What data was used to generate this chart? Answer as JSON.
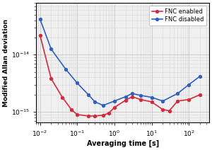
{
  "xlabel": "Averaging time [s]",
  "ylabel": "Modified Allan deviation",
  "xlim": [
    0.008,
    350
  ],
  "ylim": [
    6.5e-16,
    8e-14
  ],
  "fnc_enabled_x": [
    0.01,
    0.02,
    0.04,
    0.07,
    0.1,
    0.2,
    0.3,
    0.5,
    0.7,
    1.0,
    2.0,
    3.0,
    5.0,
    10.0,
    20.0,
    30.0,
    50.0,
    100.0,
    200.0
  ],
  "fnc_enabled_y": [
    2.2e-14,
    3.8e-15,
    1.8e-15,
    1.1e-15,
    9e-16,
    8.5e-16,
    8.5e-16,
    8.8e-16,
    9.5e-16,
    1.2e-15,
    1.6e-15,
    1.85e-15,
    1.65e-15,
    1.5e-15,
    1.1e-15,
    1.05e-15,
    1.55e-15,
    1.65e-15,
    2e-15
  ],
  "fnc_disabled_x": [
    0.01,
    0.02,
    0.05,
    0.1,
    0.2,
    0.3,
    0.5,
    1.0,
    2.0,
    3.0,
    5.0,
    10.0,
    20.0,
    50.0,
    100.0,
    200.0
  ],
  "fnc_disabled_y": [
    4.2e-14,
    1.25e-14,
    5.5e-15,
    3.2e-15,
    2e-15,
    1.5e-15,
    1.3e-15,
    1.55e-15,
    1.85e-15,
    2.1e-15,
    1.95e-15,
    1.8e-15,
    1.55e-15,
    2.1e-15,
    3e-15,
    4.2e-15
  ],
  "color_enabled": "#d42b3c",
  "color_disabled": "#3060c0",
  "legend_enabled": "FNC enabled",
  "legend_disabled": "FNC disabled",
  "marker": "o",
  "markersize": 2.8,
  "linewidth": 1.2,
  "bg_color": "#f0f0f0"
}
